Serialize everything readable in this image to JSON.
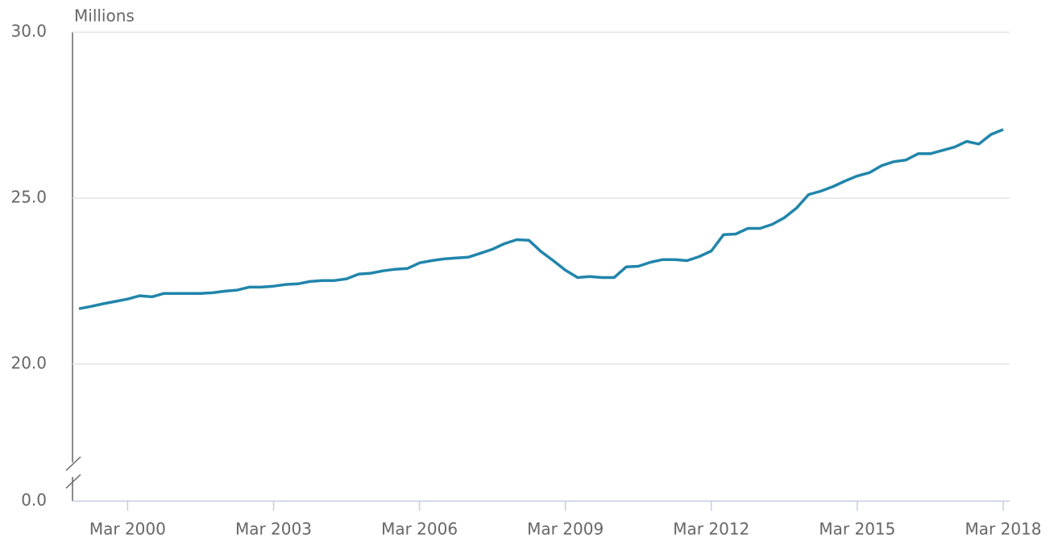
{
  "chart_data": {
    "type": "line",
    "y_label": "Millions",
    "categories": [
      null,
      null,
      null,
      null,
      "Mar 2000",
      null,
      null,
      null,
      null,
      null,
      null,
      null,
      null,
      null,
      null,
      null,
      "Mar 2003",
      null,
      null,
      null,
      null,
      null,
      null,
      null,
      null,
      null,
      null,
      null,
      "Mar 2006",
      null,
      null,
      null,
      null,
      null,
      null,
      null,
      null,
      null,
      null,
      null,
      "Mar 2009",
      null,
      null,
      null,
      null,
      null,
      null,
      null,
      null,
      null,
      null,
      null,
      "Mar 2012",
      null,
      null,
      null,
      null,
      null,
      null,
      null,
      null,
      null,
      null,
      null,
      "Mar 2015",
      null,
      null,
      null,
      null,
      null,
      null,
      null,
      null,
      null,
      null,
      null,
      "Mar 2018"
    ],
    "values": [
      21.67,
      21.74,
      21.82,
      21.89,
      21.96,
      22.06,
      22.03,
      22.13,
      22.13,
      22.13,
      22.13,
      22.15,
      22.2,
      22.23,
      22.32,
      22.32,
      22.35,
      22.4,
      22.42,
      22.49,
      22.52,
      22.52,
      22.57,
      22.71,
      22.74,
      22.81,
      22.86,
      22.88,
      23.05,
      23.12,
      23.17,
      23.2,
      23.22,
      23.34,
      23.46,
      23.63,
      23.75,
      23.73,
      23.39,
      23.12,
      22.83,
      22.61,
      22.64,
      22.61,
      22.61,
      22.93,
      22.95,
      23.07,
      23.15,
      23.15,
      23.12,
      23.24,
      23.41,
      23.9,
      23.92,
      24.09,
      24.09,
      24.21,
      24.41,
      24.7,
      25.11,
      25.21,
      25.35,
      25.52,
      25.67,
      25.77,
      25.98,
      26.1,
      26.15,
      26.34,
      26.34,
      26.44,
      26.54,
      26.71,
      26.63,
      26.92,
      27.07
    ],
    "color": "#2185ab",
    "ylim": [
      0,
      30
    ],
    "yticks": [
      {
        "value": 0,
        "label": "0.0"
      },
      {
        "value": 20,
        "label": "20.0"
      },
      {
        "value": 25,
        "label": "25.0"
      },
      {
        "value": 30,
        "label": "30.0"
      }
    ],
    "axis_break": true,
    "grid": true
  }
}
